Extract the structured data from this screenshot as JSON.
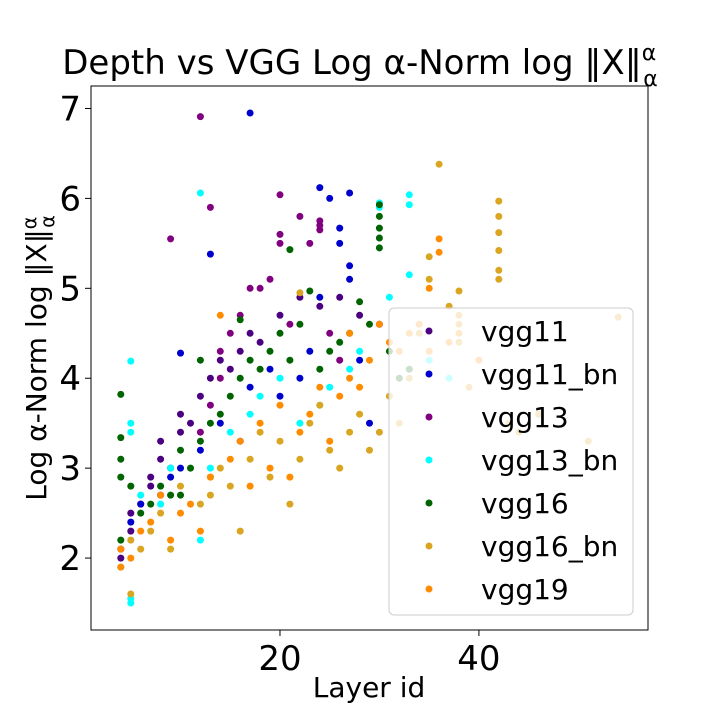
{
  "chart_data": {
    "type": "scatter",
    "title": "Depth vs VGG Log α-Norm log ‖X‖",
    "title_sup": "α",
    "title_sub": "α",
    "xlabel": "Layer id",
    "ylabel": "Log α-Norm log ‖X‖",
    "ylabel_sup": "α",
    "ylabel_sub": "α",
    "xlim": [
      1,
      57
    ],
    "ylim": [
      1.2,
      7.25
    ],
    "xticks": [
      20,
      40
    ],
    "yticks": [
      2,
      3,
      4,
      5,
      6,
      7
    ],
    "grid": false,
    "legend_position": "center-right",
    "series": [
      {
        "name": "vgg11",
        "color": "#4b0082",
        "points": [
          [
            4,
            2.0
          ],
          [
            4,
            2.1
          ],
          [
            5,
            2.3
          ],
          [
            5,
            2.5
          ],
          [
            6,
            2.6
          ],
          [
            7,
            2.8
          ],
          [
            7,
            2.9
          ],
          [
            8,
            3.1
          ],
          [
            8,
            3.3
          ],
          [
            9,
            3.0
          ],
          [
            10,
            3.4
          ],
          [
            10,
            3.6
          ],
          [
            11,
            3.5
          ],
          [
            12,
            3.8
          ],
          [
            13,
            4.0
          ],
          [
            14,
            4.2
          ],
          [
            15,
            4.1
          ],
          [
            16,
            4.3
          ],
          [
            17,
            4.5
          ],
          [
            18,
            4.4
          ],
          [
            20,
            4.7
          ],
          [
            22,
            4.9
          ],
          [
            24,
            4.8
          ],
          [
            26,
            4.9
          ],
          [
            28,
            4.7
          ],
          [
            30,
            4.6
          ]
        ]
      },
      {
        "name": "vgg11_bn",
        "color": "#0000cd",
        "points": [
          [
            5,
            2.4
          ],
          [
            6,
            2.6
          ],
          [
            8,
            2.7
          ],
          [
            9,
            2.9
          ],
          [
            10,
            3.0
          ],
          [
            10,
            4.28
          ],
          [
            12,
            3.2
          ],
          [
            13,
            5.38
          ],
          [
            14,
            3.5
          ],
          [
            16,
            3.3
          ],
          [
            17,
            6.95
          ],
          [
            17,
            3.9
          ],
          [
            19,
            4.1
          ],
          [
            20,
            3.8
          ],
          [
            22,
            4.0
          ],
          [
            23,
            4.3
          ],
          [
            24,
            4.9
          ],
          [
            24,
            6.12
          ],
          [
            25,
            6.0
          ],
          [
            26,
            5.5
          ],
          [
            26,
            5.67
          ],
          [
            27,
            6.06
          ],
          [
            27,
            5.1
          ],
          [
            27,
            5.25
          ],
          [
            28,
            4.2
          ],
          [
            29,
            3.5
          ]
        ]
      },
      {
        "name": "vgg13",
        "color": "#800080",
        "points": [
          [
            9,
            5.55
          ],
          [
            12,
            6.91
          ],
          [
            13,
            5.9
          ],
          [
            12,
            3.4
          ],
          [
            13,
            3.7
          ],
          [
            14,
            4.0
          ],
          [
            14,
            4.3
          ],
          [
            15,
            4.5
          ],
          [
            16,
            4.7
          ],
          [
            17,
            5.0
          ],
          [
            18,
            5.0
          ],
          [
            19,
            5.1
          ],
          [
            20,
            5.5
          ],
          [
            20,
            5.6
          ],
          [
            20,
            6.04
          ],
          [
            21,
            4.6
          ],
          [
            22,
            5.8
          ],
          [
            23,
            5.5
          ],
          [
            24,
            5.65
          ],
          [
            24,
            5.7
          ],
          [
            24,
            5.75
          ],
          [
            25,
            4.5
          ],
          [
            26,
            4.2
          ]
        ]
      },
      {
        "name": "vgg13_bn",
        "color": "#00ffff",
        "points": [
          [
            4,
            1.9
          ],
          [
            5,
            1.5
          ],
          [
            5,
            1.55
          ],
          [
            5,
            4.19
          ],
          [
            5,
            3.5
          ],
          [
            5,
            3.4
          ],
          [
            6,
            2.7
          ],
          [
            8,
            2.6
          ],
          [
            9,
            3.0
          ],
          [
            12,
            6.06
          ],
          [
            12,
            2.2
          ],
          [
            13,
            3.0
          ],
          [
            15,
            3.4
          ],
          [
            17,
            3.6
          ],
          [
            18,
            3.8
          ],
          [
            20,
            4.0
          ],
          [
            22,
            3.5
          ],
          [
            24,
            3.7
          ],
          [
            25,
            3.9
          ],
          [
            27,
            4.1
          ],
          [
            28,
            4.3
          ],
          [
            30,
            5.95
          ],
          [
            30,
            5.9
          ],
          [
            31,
            4.9
          ],
          [
            33,
            6.04
          ],
          [
            33,
            5.93
          ],
          [
            33,
            5.15
          ],
          [
            34,
            4.6
          ],
          [
            35,
            4.2
          ],
          [
            37,
            4.0
          ]
        ]
      },
      {
        "name": "vgg16",
        "color": "#006400",
        "points": [
          [
            4,
            3.82
          ],
          [
            4,
            3.34
          ],
          [
            4,
            3.1
          ],
          [
            4,
            2.9
          ],
          [
            4,
            2.2
          ],
          [
            5,
            2.8
          ],
          [
            6,
            2.5
          ],
          [
            7,
            2.6
          ],
          [
            8,
            2.8
          ],
          [
            9,
            2.7
          ],
          [
            10,
            3.2
          ],
          [
            10,
            2.7
          ],
          [
            11,
            3.0
          ],
          [
            12,
            4.2
          ],
          [
            12,
            3.3
          ],
          [
            13,
            3.5
          ],
          [
            14,
            3.6
          ],
          [
            15,
            3.8
          ],
          [
            16,
            4.65
          ],
          [
            16,
            4.0
          ],
          [
            17,
            4.2
          ],
          [
            18,
            4.1
          ],
          [
            19,
            4.3
          ],
          [
            20,
            4.5
          ],
          [
            21,
            5.43
          ],
          [
            21,
            4.2
          ],
          [
            22,
            4.6
          ],
          [
            23,
            4.97
          ],
          [
            24,
            4.1
          ],
          [
            25,
            4.3
          ],
          [
            26,
            4.4
          ],
          [
            27,
            4.5
          ],
          [
            28,
            4.85
          ],
          [
            29,
            4.6
          ],
          [
            30,
            5.93
          ],
          [
            30,
            5.8
          ],
          [
            30,
            5.67
          ],
          [
            30,
            5.56
          ],
          [
            30,
            5.45
          ],
          [
            31,
            4.3
          ],
          [
            32,
            4.0
          ],
          [
            33,
            4.1
          ]
        ]
      },
      {
        "name": "vgg16_bn",
        "color": "#daa520",
        "points": [
          [
            5,
            1.6
          ],
          [
            5,
            2.2
          ],
          [
            6,
            2.1
          ],
          [
            7,
            2.3
          ],
          [
            8,
            2.5
          ],
          [
            9,
            2.1
          ],
          [
            10,
            2.8
          ],
          [
            12,
            2.6
          ],
          [
            13,
            2.7
          ],
          [
            14,
            3.0
          ],
          [
            15,
            2.8
          ],
          [
            16,
            2.3
          ],
          [
            17,
            3.1
          ],
          [
            18,
            3.4
          ],
          [
            19,
            2.9
          ],
          [
            20,
            3.3
          ],
          [
            21,
            2.6
          ],
          [
            22,
            4.95
          ],
          [
            22,
            3.1
          ],
          [
            23,
            3.5
          ],
          [
            24,
            3.7
          ],
          [
            25,
            3.2
          ],
          [
            26,
            3.0
          ],
          [
            27,
            3.4
          ],
          [
            28,
            3.6
          ],
          [
            29,
            3.2
          ],
          [
            30,
            3.4
          ],
          [
            31,
            3.8
          ],
          [
            32,
            3.5
          ],
          [
            33,
            4.0
          ],
          [
            34,
            4.5
          ],
          [
            35,
            5.35
          ],
          [
            35,
            5.1
          ],
          [
            36,
            6.38
          ],
          [
            37,
            4.8
          ],
          [
            38,
            4.97
          ],
          [
            38,
            4.7
          ],
          [
            38,
            4.6
          ],
          [
            38,
            4.4
          ],
          [
            39,
            3.9
          ],
          [
            40,
            4.2
          ],
          [
            42,
            5.97
          ],
          [
            42,
            5.8
          ],
          [
            42,
            5.62
          ],
          [
            42,
            5.42
          ],
          [
            42,
            5.2
          ],
          [
            42,
            5.1
          ],
          [
            43,
            3.5
          ],
          [
            44,
            3.4
          ],
          [
            46,
            3.6
          ],
          [
            51,
            3.3
          ],
          [
            54,
            4.68
          ]
        ]
      },
      {
        "name": "vgg19",
        "color": "#ff8c00",
        "points": [
          [
            4,
            1.9
          ],
          [
            4,
            2.1
          ],
          [
            5,
            2.0
          ],
          [
            6,
            2.3
          ],
          [
            7,
            2.4
          ],
          [
            8,
            2.7
          ],
          [
            9,
            2.2
          ],
          [
            10,
            2.5
          ],
          [
            11,
            2.6
          ],
          [
            12,
            2.3
          ],
          [
            13,
            2.9
          ],
          [
            13,
            2.9
          ],
          [
            14,
            4.7
          ],
          [
            15,
            3.1
          ],
          [
            16,
            3.3
          ],
          [
            17,
            2.8
          ],
          [
            18,
            3.5
          ],
          [
            19,
            3.0
          ],
          [
            20,
            3.7
          ],
          [
            21,
            2.9
          ],
          [
            22,
            3.4
          ],
          [
            23,
            3.6
          ],
          [
            24,
            3.9
          ],
          [
            25,
            3.3
          ],
          [
            26,
            3.8
          ],
          [
            27,
            4.5
          ],
          [
            27,
            4.0
          ],
          [
            28,
            3.9
          ],
          [
            29,
            4.2
          ],
          [
            30,
            4.6
          ],
          [
            31,
            4.4
          ],
          [
            32,
            4.3
          ],
          [
            33,
            4.5
          ],
          [
            34,
            4.6
          ],
          [
            35,
            5.0
          ],
          [
            35,
            4.3
          ],
          [
            36,
            5.55
          ],
          [
            36,
            5.4
          ],
          [
            37,
            4.4
          ],
          [
            38,
            4.5
          ],
          [
            40,
            4.2
          ]
        ]
      }
    ]
  }
}
